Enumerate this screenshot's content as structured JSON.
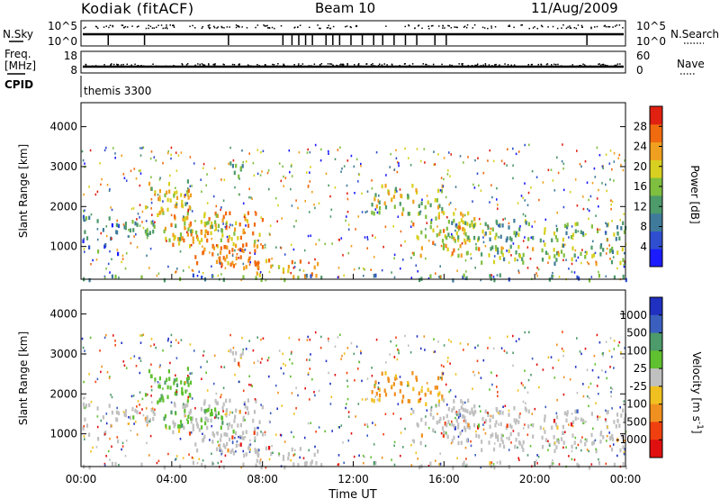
{
  "header": {
    "station": "Kodiak (fitACF)",
    "beam": "Beam 10",
    "date": "11/Aug/2009"
  },
  "left_labels": {
    "nsky": "N.Sky",
    "freq_line1": "Freq.",
    "freq_line2": "[MHz]",
    "cpid": "CPID"
  },
  "right_labels": {
    "nsearch": "N.Search",
    "nave": "Nave"
  },
  "status_axes": {
    "noise_left_ticks": [
      "10^5",
      "10^0"
    ],
    "noise_right_ticks": [
      "10^5",
      "10^0"
    ],
    "freq_left_ticks": [
      "18",
      "8"
    ],
    "nave_right_ticks": [
      "60",
      "0"
    ]
  },
  "cpid_text": "themis 3300",
  "chart_data": [
    {
      "type": "heatmap",
      "name": "power",
      "ylabel": "Slant Range [km]",
      "ylim": [
        180,
        4600
      ],
      "yticks": [
        1000,
        2000,
        3000,
        4000
      ],
      "xlim_hours": [
        0,
        24
      ],
      "colorbar": {
        "label": "Power [dB]",
        "range": [
          0,
          32
        ],
        "ticks": [
          "4",
          "8",
          "12",
          "16",
          "20",
          "24",
          "28"
        ],
        "colors": [
          "#1b1bff",
          "#2f4fd0",
          "#3f7a9a",
          "#4d9a6a",
          "#7fbf40",
          "#d8d020",
          "#f0a020",
          "#f06a10",
          "#e02010"
        ]
      }
    },
    {
      "type": "heatmap",
      "name": "velocity",
      "ylabel": "Slant Range [km]",
      "ylim": [
        180,
        4600
      ],
      "yticks": [
        1000,
        2000,
        3000,
        4000
      ],
      "xlim_hours": [
        0,
        24
      ],
      "ground_scatter": "#c0c0c0",
      "colorbar": {
        "label": "Velocity [m s^-1]",
        "ticks": [
          "1000",
          "500",
          "100",
          "25",
          "-25",
          "-100",
          "-500",
          "-1000"
        ],
        "colors": [
          "#2030c0",
          "#3a5fbf",
          "#4d9a6a",
          "#5fc030",
          "#c0c0c0",
          "#f0c020",
          "#f09020",
          "#f04010",
          "#e01010"
        ]
      }
    }
  ],
  "x_axis": {
    "ticks": [
      "00:00",
      "04:00",
      "08:00",
      "12:00",
      "16:00",
      "20:00",
      "00:00"
    ],
    "label": "Time UT"
  }
}
